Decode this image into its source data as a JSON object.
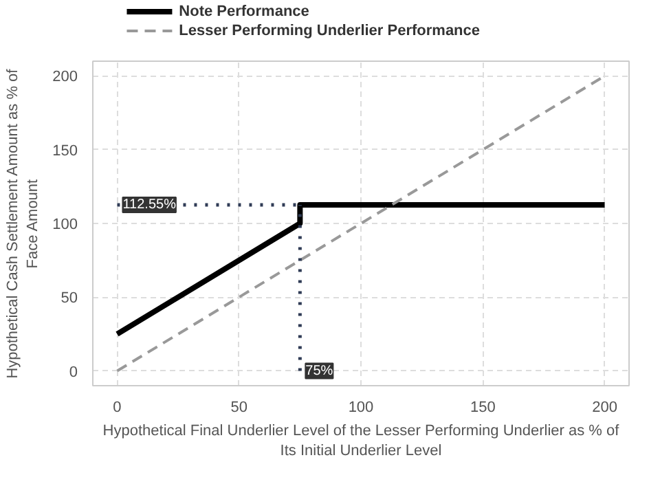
{
  "chart_data": {
    "type": "line",
    "xlabel": "Hypothetical Final Underlier Level of the Lesser Performing Underlier as % of Its Initial Underlier Level",
    "ylabel": "Hypothetical Cash Settlement Amount as % of Face Amount",
    "xlim": [
      -10,
      210
    ],
    "ylim": [
      -10,
      210
    ],
    "xticks": [
      0,
      50,
      100,
      150,
      200
    ],
    "yticks": [
      0,
      50,
      100,
      150,
      200
    ],
    "grid": true,
    "legend": "top",
    "series": [
      {
        "name": "Note Performance",
        "color": "#000000",
        "line_style": "solid",
        "x": [
          0,
          75,
          75,
          200
        ],
        "values": [
          25,
          100,
          112.55,
          112.55
        ]
      },
      {
        "name": "Lesser Performing Underlier Performance",
        "color": "#999999",
        "line_style": "dashed",
        "x": [
          0,
          200
        ],
        "values": [
          0,
          200
        ]
      },
      {
        "color": "#2f3b55",
        "line_style": "dotted",
        "x": [
          0,
          75
        ],
        "values": [
          112.55,
          112.55
        ]
      },
      {
        "color": "#2f3b55",
        "line_style": "dotted",
        "x": [
          75,
          75
        ],
        "values": [
          0,
          112.55
        ]
      }
    ],
    "annotations": [
      {
        "text": "112.55%",
        "x": 0,
        "y": 112.55
      },
      {
        "text": "75%",
        "x": 75,
        "y": 0
      }
    ]
  }
}
